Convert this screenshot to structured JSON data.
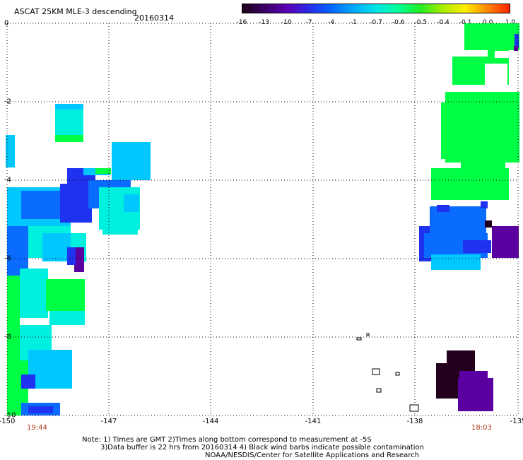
{
  "header": {
    "title": "ASCAT 25KM MLE-3 descending",
    "date": "20160314"
  },
  "colorbar": {
    "labels": [
      "-16",
      "-13",
      "-10",
      "-7",
      "-4",
      "-1",
      "-0.7",
      "-0.6",
      "-0.5",
      "-0.4",
      "-0.1",
      "0.0",
      "1.0"
    ],
    "colors": [
      "#1a0018",
      "#3b0066",
      "#5a00b4",
      "#2a2ae8",
      "#0066ff",
      "#00aaff",
      "#00e6e6",
      "#00ff99",
      "#22ee22",
      "#aaee00",
      "#ffee00",
      "#ff8800",
      "#ff2200"
    ]
  },
  "axes": {
    "x_ticks": [
      "-150",
      "-147",
      "-144",
      "-141",
      "-138",
      "-135"
    ],
    "y_ticks": [
      "0",
      "-2",
      "-4",
      "-6",
      "-8",
      "-10"
    ]
  },
  "times": {
    "left": "19:44",
    "right": "18:03"
  },
  "notes": {
    "line1": "Note: 1) Times are GMT 2)Times along bottom correspond to measurement at -5S",
    "line2": "3)Data buffer is 22 hrs from 20160314 4) Black wind barbs indicate possible contamination",
    "line3": "NOAA/NESDIS/Center for Satellite Applications and Research"
  },
  "palette": {
    "cyan": "#00f0e0",
    "lightblue": "#00c8ff",
    "blue": "#0a6cff",
    "deepblue": "#1e32f0",
    "green": "#00ff44",
    "darkpurple": "#23001c",
    "purple": "#5b00a0"
  }
}
